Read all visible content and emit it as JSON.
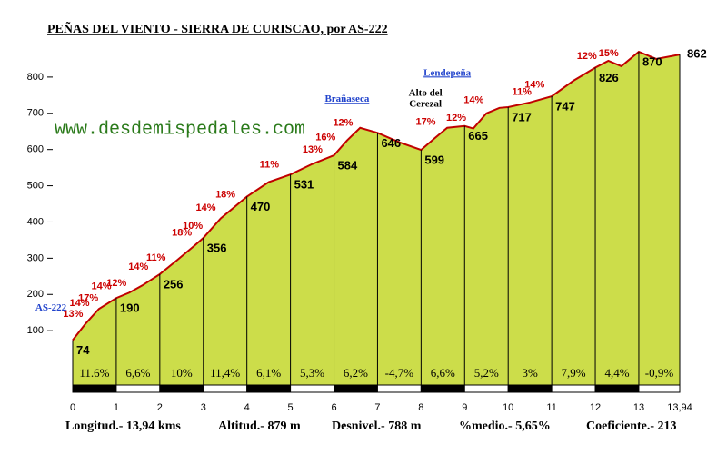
{
  "chart_data": {
    "type": "area",
    "title": "PEÑAS DEL VIENTO - SIERRA DE CURISCAO, por AS-222",
    "subtitle": "www.desdemispedales.com",
    "x": [
      0,
      0.3,
      0.6,
      1,
      1.3,
      1.6,
      2,
      2.4,
      2.8,
      3,
      3.4,
      3.8,
      4,
      4.5,
      5,
      5.5,
      6,
      6.3,
      6.6,
      7,
      7.5,
      8,
      8.3,
      8.6,
      9,
      9.2,
      9.5,
      9.8,
      10,
      10.5,
      11,
      11.5,
      12,
      12.3,
      12.6,
      13,
      13.4,
      13.94
    ],
    "series": [
      {
        "name": "Altitud",
        "color": "#ccdd4a",
        "values": [
          74,
          120,
          160,
          190,
          205,
          225,
          256,
          295,
          335,
          356,
          410,
          450,
          470,
          510,
          531,
          560,
          584,
          625,
          660,
          646,
          620,
          599,
          630,
          660,
          665,
          658,
          700,
          715,
          717,
          730,
          747,
          790,
          826,
          845,
          830,
          870,
          850,
          862
        ]
      }
    ],
    "line_color": "#c00000",
    "xlim": [
      0,
      13.94
    ],
    "ylim": [
      -50,
      900
    ],
    "xticks": [
      0,
      1,
      2,
      3,
      4,
      5,
      6,
      7,
      8,
      9,
      10,
      11,
      12,
      13,
      {
        "value": 13.94,
        "label": "13,94"
      }
    ],
    "yticks": [
      100,
      200,
      300,
      400,
      500,
      600,
      700,
      800
    ],
    "segment_labels": [
      "11.6%",
      "6,6%",
      "10%",
      "11,4%",
      "6,1%",
      "5,3%",
      "6,2%",
      "-4,7%",
      "6,6%",
      "5,2%",
      "3%",
      "7,9%",
      "4,4%",
      "-0,9%"
    ],
    "gradient_annotations": [
      {
        "x": 0.3,
        "label": "13%"
      },
      {
        "x": 0.45,
        "label": "14%"
      },
      {
        "x": 0.65,
        "label": "17%"
      },
      {
        "x": 0.95,
        "label": "14%"
      },
      {
        "x": 1.3,
        "label": "12%"
      },
      {
        "x": 1.8,
        "label": "14%"
      },
      {
        "x": 2.2,
        "label": "11%"
      },
      {
        "x": 2.8,
        "label": "18%"
      },
      {
        "x": 3.05,
        "label": "10%"
      },
      {
        "x": 3.35,
        "label": "14%"
      },
      {
        "x": 3.8,
        "label": "18%"
      },
      {
        "x": 4.8,
        "label": "11%"
      },
      {
        "x": 5.8,
        "label": "13%"
      },
      {
        "x": 6.1,
        "label": "16%"
      },
      {
        "x": 6.5,
        "label": "12%"
      },
      {
        "x": 8.4,
        "label": "17%"
      },
      {
        "x": 9.1,
        "label": "12%"
      },
      {
        "x": 9.5,
        "label": "14%"
      },
      {
        "x": 10.6,
        "label": "11%"
      },
      {
        "x": 10.9,
        "label": "14%"
      },
      {
        "x": 12.1,
        "label": "12%"
      },
      {
        "x": 12.6,
        "label": "15%"
      }
    ],
    "places": [
      {
        "x": -0.5,
        "label": "AS-222"
      },
      {
        "x": 6.3,
        "label": "Brañaseca"
      },
      {
        "x": 8.6,
        "label": "Lendepeña"
      },
      {
        "x": 8.1,
        "label": "Alto del"
      },
      {
        "x": 8.1,
        "label": "Cerezal"
      }
    ],
    "stats": [
      "Longitud.- 13,94 kms",
      "Altitud.- 879 m",
      "Desnivel.- 788 m",
      "%medio.- 5,65%",
      "Coeficiente.- 213"
    ]
  }
}
